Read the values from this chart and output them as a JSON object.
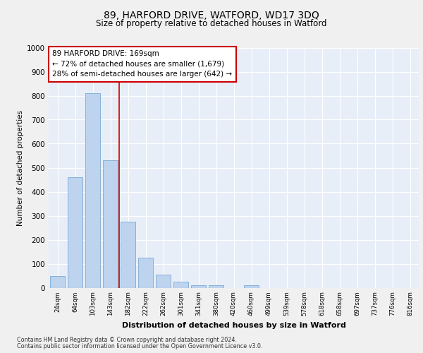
{
  "title1": "89, HARFORD DRIVE, WATFORD, WD17 3DQ",
  "title2": "Size of property relative to detached houses in Watford",
  "xlabel": "Distribution of detached houses by size in Watford",
  "ylabel": "Number of detached properties",
  "categories": [
    "24sqm",
    "64sqm",
    "103sqm",
    "143sqm",
    "182sqm",
    "222sqm",
    "262sqm",
    "301sqm",
    "341sqm",
    "380sqm",
    "420sqm",
    "460sqm",
    "499sqm",
    "539sqm",
    "578sqm",
    "618sqm",
    "658sqm",
    "697sqm",
    "737sqm",
    "776sqm",
    "816sqm"
  ],
  "values": [
    50,
    460,
    810,
    530,
    275,
    125,
    55,
    25,
    10,
    10,
    0,
    10,
    0,
    0,
    0,
    0,
    0,
    0,
    0,
    0,
    0
  ],
  "bar_color": "#bdd3ee",
  "bar_edge_color": "#7aaad4",
  "annotation_line1": "89 HARFORD DRIVE: 169sqm",
  "annotation_line2": "← 72% of detached houses are smaller (1,679)",
  "annotation_line3": "28% of semi-detached houses are larger (642) →",
  "annotation_box_color": "#ffffff",
  "annotation_box_edge": "#cc0000",
  "property_line_color": "#cc0000",
  "footer1": "Contains HM Land Registry data © Crown copyright and database right 2024.",
  "footer2": "Contains public sector information licensed under the Open Government Licence v3.0.",
  "ylim": [
    0,
    1000
  ],
  "yticks": [
    0,
    100,
    200,
    300,
    400,
    500,
    600,
    700,
    800,
    900,
    1000
  ],
  "bg_color": "#e8eef8",
  "grid_color": "#ffffff",
  "fig_bg": "#f0f0f0"
}
